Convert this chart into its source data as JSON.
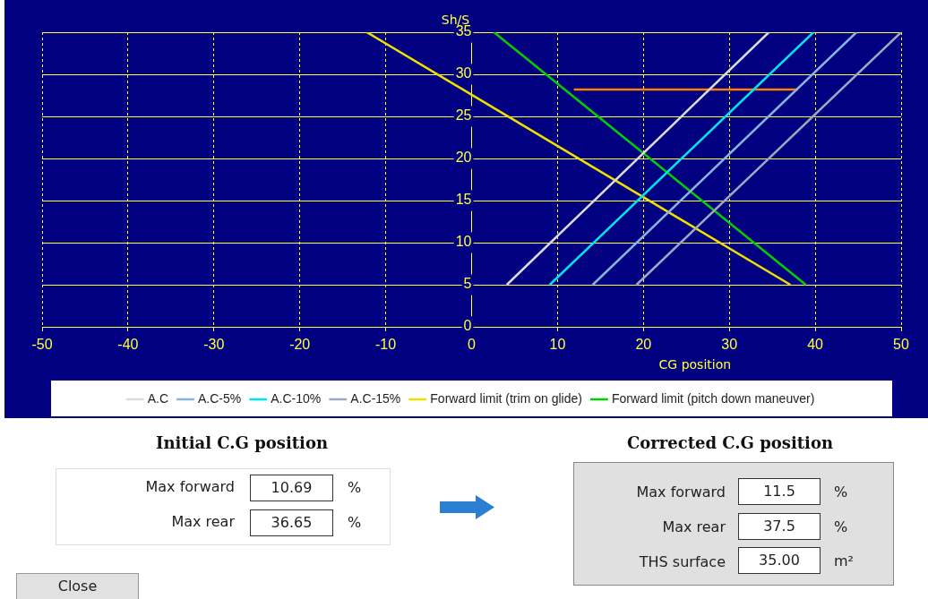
{
  "chart_data": {
    "type": "line",
    "xlabel": "CG position",
    "ylabel": "Sh/S",
    "xlim": [
      -50,
      50
    ],
    "xticks": [
      -50,
      -40,
      -30,
      -20,
      -10,
      0,
      10,
      20,
      30,
      40,
      50
    ],
    "ylim": [
      0,
      35
    ],
    "yticks": [
      0,
      5,
      10,
      15,
      20,
      25,
      30,
      35
    ],
    "grid": true,
    "legend": "bottom",
    "marker": "none",
    "line_style": "solid",
    "series": [
      {
        "name": "A.C",
        "color": "#dcdcdc",
        "x": [
          4.1,
          34.6
        ],
        "values": [
          5,
          35
        ]
      },
      {
        "name": "A.C-5%",
        "color": "#87b5e0",
        "x": [
          14.1,
          44.8
        ],
        "values": [
          5,
          35
        ]
      },
      {
        "name": "A.C-10%",
        "color": "#00e5ee",
        "x": [
          9.1,
          39.8
        ],
        "values": [
          5,
          35
        ]
      },
      {
        "name": "A.C-15%",
        "color": "#a0a8c0",
        "x": [
          19.2,
          50
        ],
        "values": [
          5,
          35
        ]
      },
      {
        "name": "Forward limit (trim on glide)",
        "color": "#f0e000",
        "x": [
          -12.2,
          37.1
        ],
        "values": [
          35,
          5
        ]
      },
      {
        "name": "Forward limit (pitch down maneuver)",
        "color": "#00d000",
        "x": [
          2.6,
          38.9
        ],
        "values": [
          35,
          5
        ]
      },
      {
        "color": "#ff7f00",
        "x": [
          11.9,
          38.0
        ],
        "values": [
          28.2,
          28.2
        ]
      }
    ],
    "annotations": [
      "Initial C.G position",
      "Max forward",
      "10.69",
      "%",
      "Max rear",
      "36.65",
      "%",
      "Corrected C.G position",
      "Max forward",
      "11.5",
      "%",
      "Max rear",
      "37.5",
      "%",
      "THS surface",
      "35.00",
      "m²",
      "Close"
    ]
  }
}
